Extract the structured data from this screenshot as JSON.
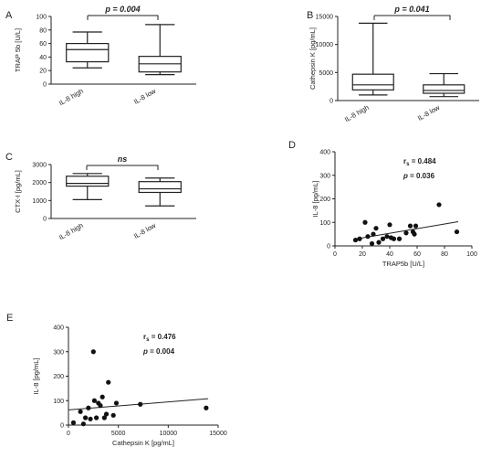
{
  "chart_data": [
    {
      "panel": "A",
      "type": "box",
      "categories": [
        "IL-8 high",
        "IL-8 low"
      ],
      "ylabel": "TRAP 5b [U/L]",
      "ylim": [
        0,
        100
      ],
      "yticks": [
        0,
        20,
        40,
        60,
        80,
        100
      ],
      "boxes": [
        {
          "min": 24,
          "q1": 33,
          "median": 51,
          "q3": 60,
          "max": 77
        },
        {
          "min": 14,
          "q1": 18,
          "median": 30,
          "q3": 41,
          "max": 88
        }
      ],
      "annotation": {
        "label": "p = 0.004"
      }
    },
    {
      "panel": "B",
      "type": "box",
      "categories": [
        "IL-8 high",
        "IL-8 low"
      ],
      "ylabel": "Cathepsin K [pg/mL]",
      "ylim": [
        0,
        15000
      ],
      "yticks": [
        0,
        5000,
        10000,
        15000
      ],
      "boxes": [
        {
          "min": 1000,
          "q1": 1900,
          "median": 2800,
          "q3": 4700,
          "max": 13800
        },
        {
          "min": 700,
          "q1": 1300,
          "median": 1800,
          "q3": 2800,
          "max": 4800
        }
      ],
      "annotation": {
        "label": "p = 0.041"
      }
    },
    {
      "panel": "C",
      "type": "box",
      "categories": [
        "IL-8 high",
        "IL-8 low"
      ],
      "ylabel": "CTX-I [pg/mL]",
      "ylim": [
        0,
        3000
      ],
      "yticks": [
        0,
        1000,
        2000,
        3000
      ],
      "boxes": [
        {
          "min": 1050,
          "q1": 1800,
          "median": 1950,
          "q3": 2350,
          "max": 2500
        },
        {
          "min": 700,
          "q1": 1450,
          "median": 1650,
          "q3": 2050,
          "max": 2250
        }
      ],
      "annotation": {
        "label": "ns"
      }
    },
    {
      "panel": "D",
      "type": "scatter",
      "xlabel": "TRAP5b [U/L]",
      "ylabel": "IL-8 [pg/mL]",
      "xlim": [
        0,
        100
      ],
      "ylim": [
        0,
        400
      ],
      "xticks": [
        0,
        20,
        40,
        60,
        80,
        100
      ],
      "yticks": [
        0,
        100,
        200,
        300,
        400
      ],
      "stats": [
        {
          "label": "r",
          "sub": "s",
          "value": "= 0.484"
        },
        {
          "label": "p",
          "value": "= 0.036"
        }
      ],
      "points": [
        [
          15,
          25
        ],
        [
          18,
          30
        ],
        [
          22,
          100
        ],
        [
          24,
          40
        ],
        [
          27,
          10
        ],
        [
          28,
          50
        ],
        [
          30,
          75
        ],
        [
          32,
          15
        ],
        [
          35,
          30
        ],
        [
          38,
          40
        ],
        [
          40,
          90
        ],
        [
          41,
          35
        ],
        [
          43,
          30
        ],
        [
          47,
          30
        ],
        [
          52,
          55
        ],
        [
          55,
          85
        ],
        [
          57,
          60
        ],
        [
          58,
          50
        ],
        [
          59,
          85
        ],
        [
          76,
          175
        ],
        [
          89,
          60
        ]
      ],
      "fit": [
        [
          14,
          28
        ],
        [
          90,
          103
        ]
      ]
    },
    {
      "panel": "E",
      "type": "scatter",
      "xlabel": "Cathepsin K [pg/mL]",
      "ylabel": "IL-8 [pg/mL]",
      "xlim": [
        0,
        15000
      ],
      "ylim": [
        0,
        400
      ],
      "xticks": [
        0,
        5000,
        10000,
        15000
      ],
      "yticks": [
        0,
        100,
        200,
        300,
        400
      ],
      "stats": [
        {
          "label": "r",
          "sub": "s",
          "value": "= 0.476"
        },
        {
          "label": "p",
          "value": "= 0.004"
        }
      ],
      "points": [
        [
          500,
          10
        ],
        [
          1200,
          55
        ],
        [
          1500,
          5
        ],
        [
          1700,
          30
        ],
        [
          2000,
          70
        ],
        [
          2200,
          25
        ],
        [
          2500,
          300
        ],
        [
          2600,
          100
        ],
        [
          2800,
          30
        ],
        [
          3000,
          90
        ],
        [
          3200,
          80
        ],
        [
          3400,
          115
        ],
        [
          3600,
          30
        ],
        [
          3800,
          45
        ],
        [
          4000,
          175
        ],
        [
          4500,
          40
        ],
        [
          4800,
          90
        ],
        [
          7200,
          85
        ],
        [
          13800,
          70
        ]
      ],
      "fit": [
        [
          0,
          62
        ],
        [
          14000,
          108
        ]
      ]
    }
  ]
}
